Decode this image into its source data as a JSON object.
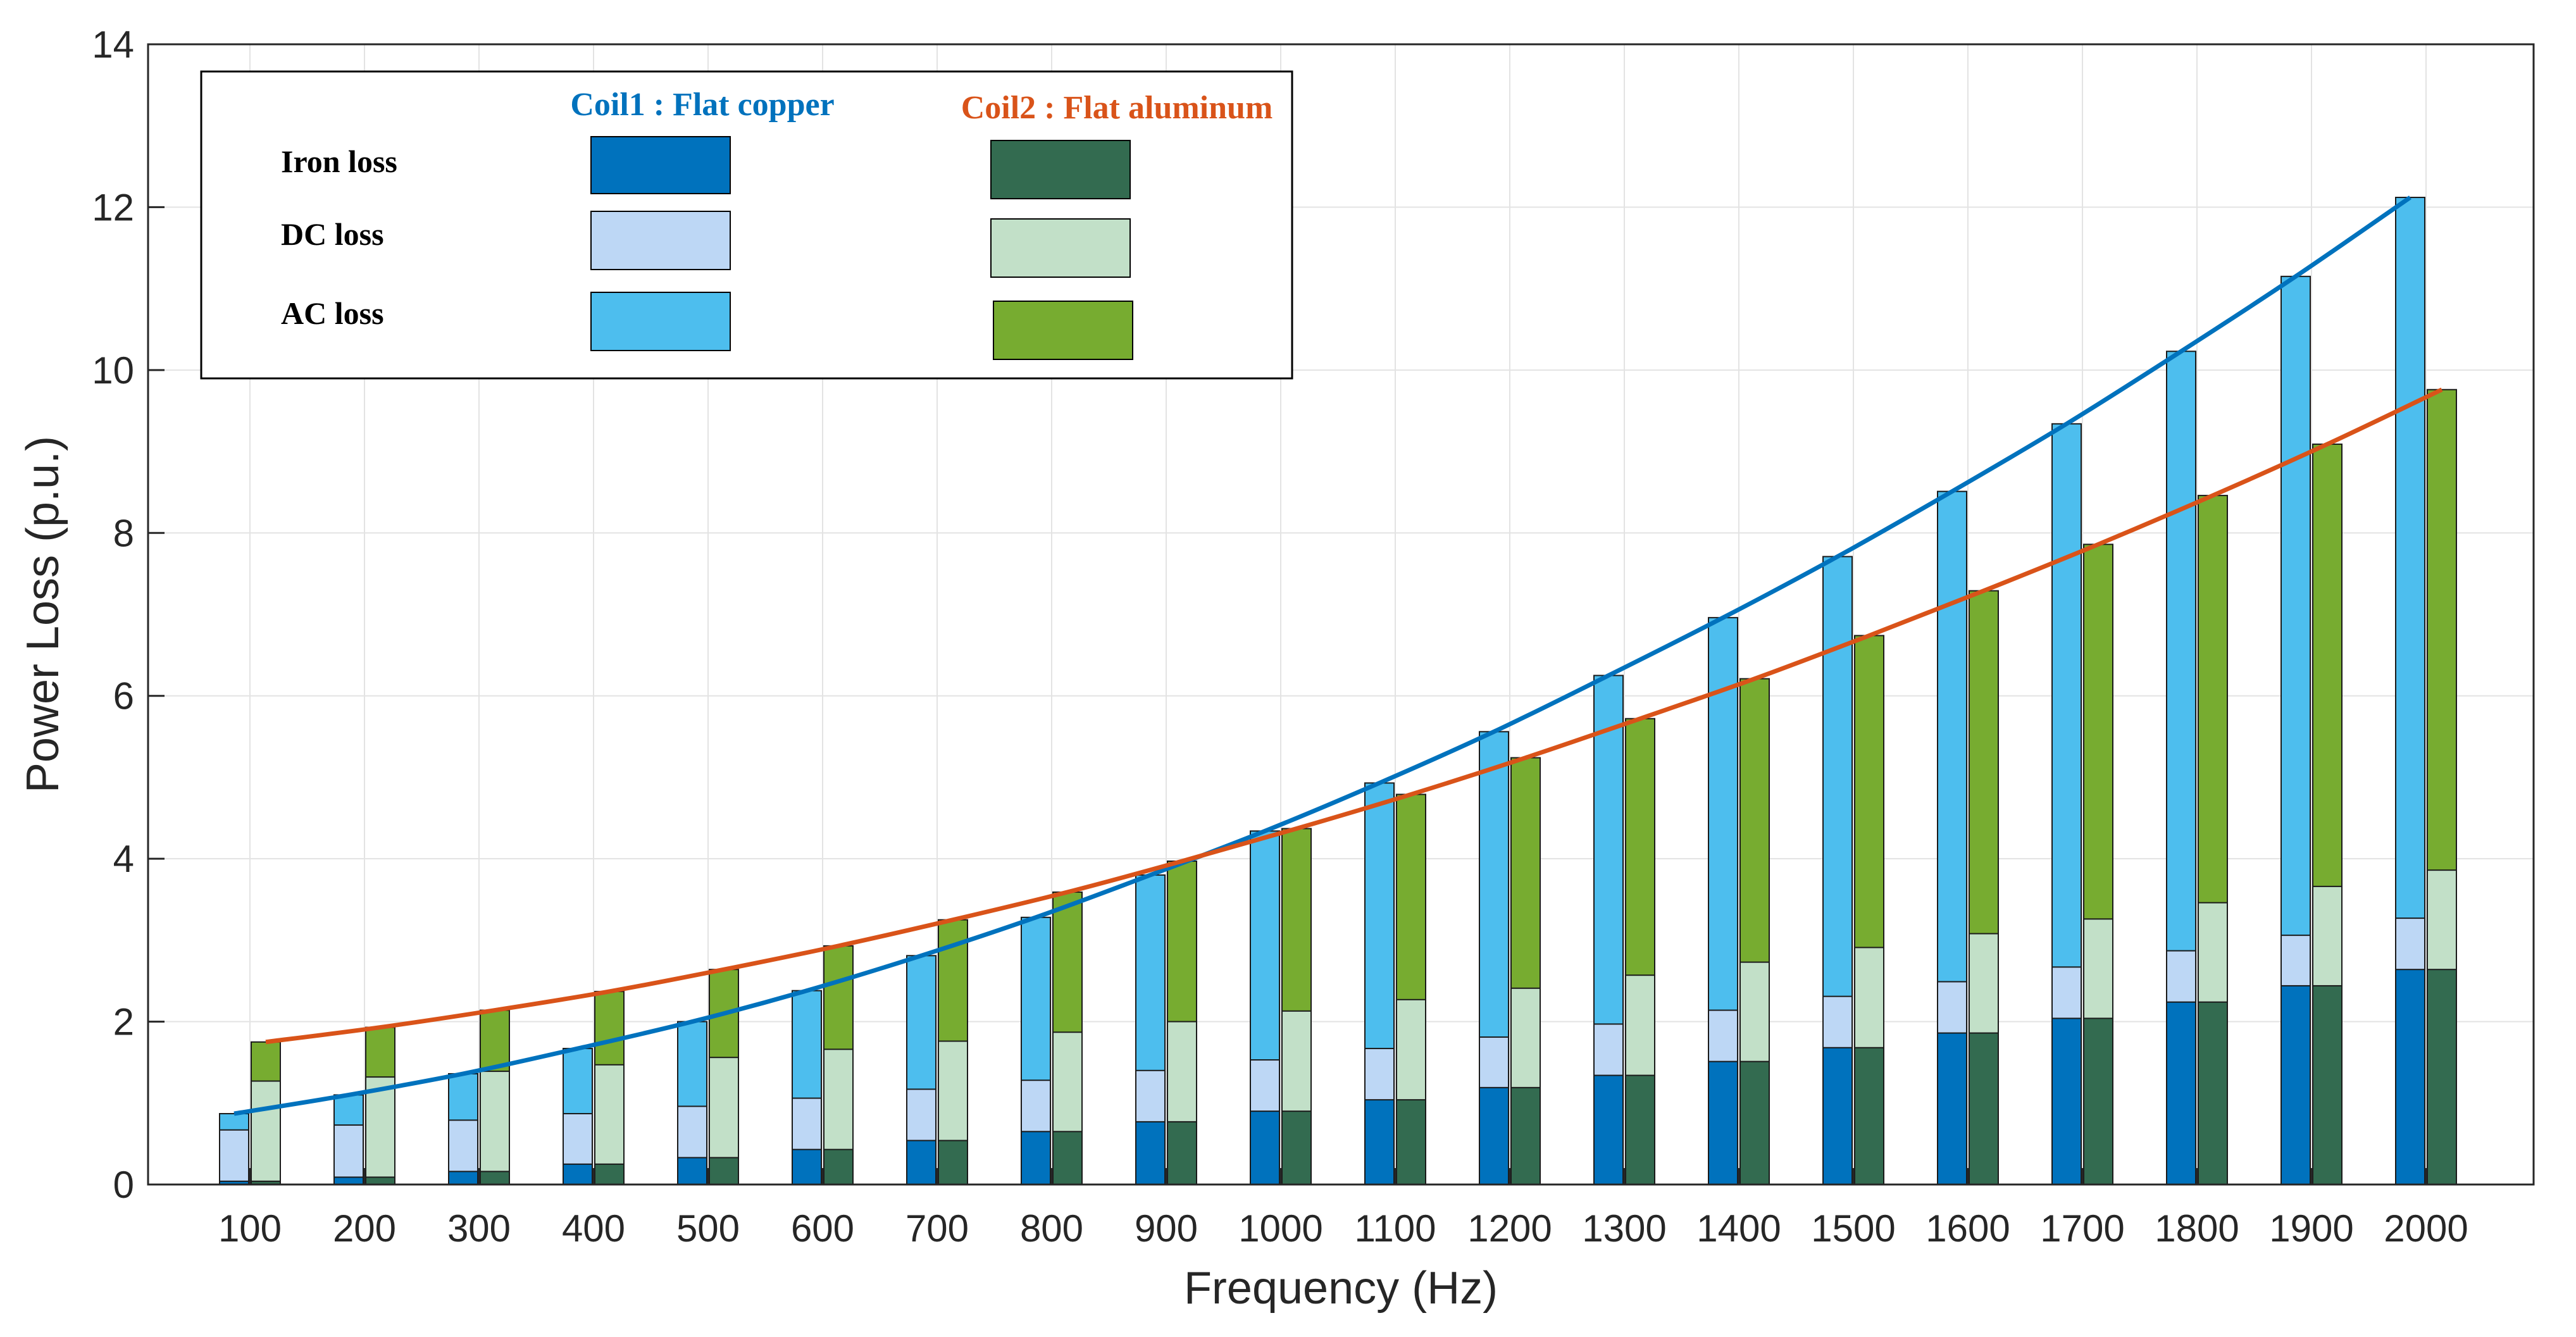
{
  "chart_data": {
    "type": "bar",
    "title": "",
    "xlabel": "Frequency (Hz)",
    "ylabel": "Power Loss (p.u.)",
    "ylim": [
      0,
      14
    ],
    "yticks": [
      "0",
      "2",
      "4",
      "6",
      "8",
      "10",
      "12",
      "14"
    ],
    "grid": true,
    "categories": [
      "100",
      "200",
      "300",
      "400",
      "500",
      "600",
      "700",
      "800",
      "900",
      "1000",
      "1100",
      "1200",
      "1300",
      "1400",
      "1500",
      "1600",
      "1700",
      "1800",
      "1900",
      "2000"
    ],
    "coil1": {
      "name": "Coil1 : Flat copper",
      "color": "#0072BD",
      "iron": [
        0.04,
        0.09,
        0.16,
        0.25,
        0.33,
        0.43,
        0.54,
        0.65,
        0.77,
        0.9,
        1.04,
        1.19,
        1.34,
        1.51,
        1.68,
        1.86,
        2.04,
        2.24,
        2.44,
        2.64
      ],
      "dc": [
        0.67,
        0.73,
        0.79,
        0.87,
        0.96,
        1.06,
        1.17,
        1.28,
        1.4,
        1.53,
        1.67,
        1.81,
        1.97,
        2.14,
        2.31,
        2.49,
        2.67,
        2.87,
        3.06,
        3.27
      ],
      "ac": [
        0.87,
        1.1,
        1.36,
        1.67,
        2.0,
        2.38,
        2.81,
        3.28,
        3.8,
        4.34,
        4.93,
        5.56,
        6.25,
        6.96,
        7.71,
        8.51,
        9.34,
        10.23,
        11.15,
        12.12
      ]
    },
    "coil2": {
      "name": "Coil2 : Flat aluminum",
      "color": "#D95319",
      "iron": [
        0.04,
        0.09,
        0.16,
        0.25,
        0.33,
        0.43,
        0.54,
        0.65,
        0.77,
        0.9,
        1.04,
        1.19,
        1.34,
        1.51,
        1.68,
        1.86,
        2.04,
        2.24,
        2.44,
        2.64
      ],
      "dc": [
        1.27,
        1.32,
        1.39,
        1.47,
        1.56,
        1.66,
        1.76,
        1.87,
        2.0,
        2.13,
        2.27,
        2.41,
        2.57,
        2.73,
        2.91,
        3.08,
        3.26,
        3.46,
        3.66,
        3.86
      ],
      "ac": [
        1.75,
        1.93,
        2.14,
        2.37,
        2.64,
        2.93,
        3.25,
        3.59,
        3.97,
        4.37,
        4.79,
        5.24,
        5.72,
        6.21,
        6.74,
        7.29,
        7.86,
        8.46,
        9.09,
        9.76
      ]
    },
    "legend": {
      "placement": "top-left",
      "coil1_header": "Coil1 : Flat copper",
      "coil2_header": "Coil2 : Flat aluminum",
      "rows": [
        "Iron loss",
        "DC loss",
        "AC loss"
      ]
    },
    "colors": {
      "coil1_iron": "#0072BD",
      "coil1_dc": "#BDD7F5",
      "coil1_ac": "#4DBEEE",
      "coil2_iron": "#336B50",
      "coil2_dc": "#C2E0C8",
      "coil2_ac": "#77AC30",
      "coil1_line": "#0072BD",
      "coil2_line": "#D95319"
    }
  }
}
